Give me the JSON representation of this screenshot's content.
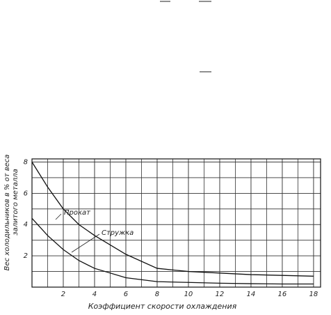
{
  "chart_data": {
    "type": "line",
    "y_label_lines": [
      "Вес холодильников в % от веса",
      "залитого металла"
    ],
    "x_label": "Коэффициент скорости охлаждения",
    "x": [
      0,
      1,
      2,
      3,
      4,
      6,
      8,
      10,
      12,
      14,
      16,
      18
    ],
    "series": [
      {
        "name": "Прокат",
        "color": "#111111",
        "values": [
          8,
          6.4,
          5.0,
          4.0,
          3.3,
          2.1,
          1.2,
          1.0,
          0.9,
          0.8,
          0.75,
          0.7
        ]
      },
      {
        "name": "Стружка",
        "color": "#111111",
        "values": [
          4.4,
          3.3,
          2.4,
          1.7,
          1.2,
          0.6,
          0.35,
          0.3,
          0.25,
          0.22,
          0.2,
          0.2
        ]
      }
    ],
    "xlim": [
      0,
      18.45
    ],
    "ylim": [
      0,
      8.2
    ],
    "xticks": [
      2,
      4,
      6,
      8,
      10,
      12,
      14,
      16,
      18
    ],
    "yticks": [
      2,
      4,
      6,
      8
    ],
    "grid": true,
    "minor_grid": true
  }
}
